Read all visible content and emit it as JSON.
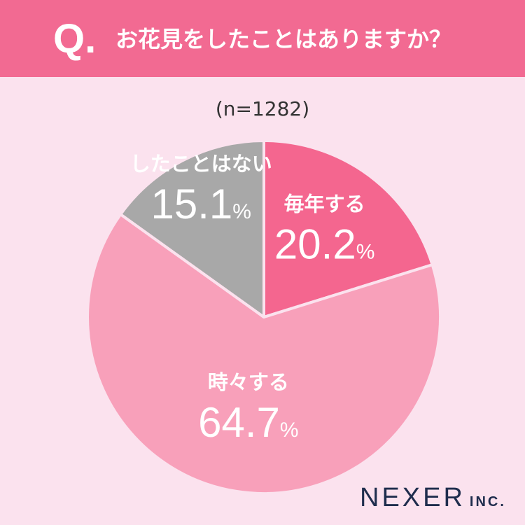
{
  "header": {
    "q_mark": "Q.",
    "question": "お花見をしたことはありますか？"
  },
  "sample_size": "(n=1282)",
  "colors": {
    "background": "#fbe2ee",
    "header": "#f26a92",
    "slice_every_year": "#f4668f",
    "slice_sometimes": "#f8a0ba",
    "slice_never": "#a8a8a8",
    "border": "#fbe2ee"
  },
  "chart_data": {
    "type": "pie",
    "slices": [
      {
        "label": "毎年する",
        "value": 20.2,
        "value_label": "20.2",
        "unit": "%",
        "color": "#f4668f"
      },
      {
        "label": "時々する",
        "value": 64.7,
        "value_label": "64.7",
        "unit": "%",
        "color": "#f8a0ba"
      },
      {
        "label": "したことはない",
        "value": 15.1,
        "value_label": "15.1",
        "unit": "%",
        "color": "#a8a8a8"
      }
    ],
    "start_angle": "12 o'clock",
    "direction": "clockwise"
  },
  "logo": {
    "main": "NEXER",
    "sub": "INC."
  }
}
